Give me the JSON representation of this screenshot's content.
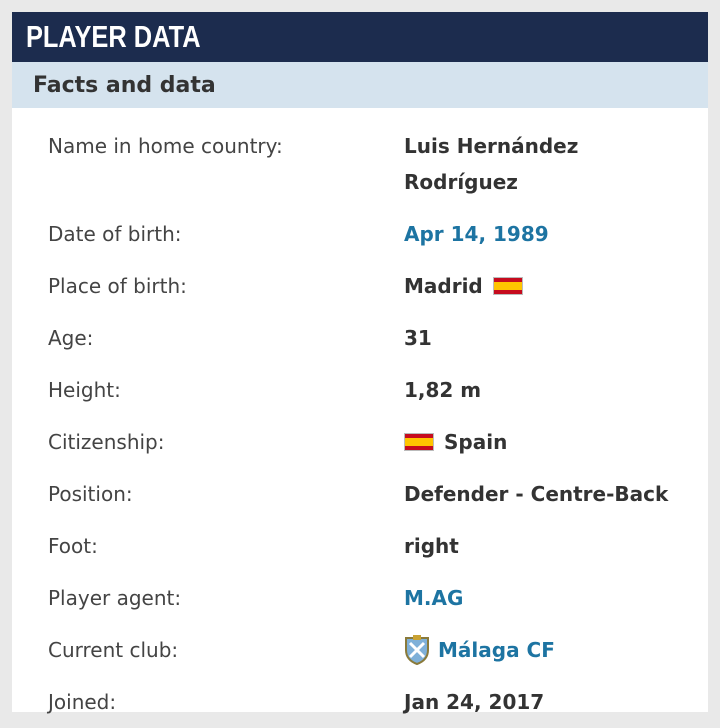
{
  "header": {
    "title": "PLAYER DATA"
  },
  "section": {
    "title": "Facts and data"
  },
  "rows": [
    {
      "label": "Name in home country:",
      "value": "Luis Hernández Rodríguez"
    },
    {
      "label": "Date of birth:",
      "value": "Apr 14, 1989"
    },
    {
      "label": "Place of birth:",
      "value": "Madrid"
    },
    {
      "label": "Age:",
      "value": "31"
    },
    {
      "label": "Height:",
      "value": "1,82 m"
    },
    {
      "label": "Citizenship:",
      "value": "Spain"
    },
    {
      "label": "Position:",
      "value": "Defender - Centre-Back"
    },
    {
      "label": "Foot:",
      "value": "right"
    },
    {
      "label": "Player agent:",
      "value": "M.AG"
    },
    {
      "label": "Current club:",
      "value": "Málaga CF"
    },
    {
      "label": "Joined:",
      "value": "Jan 24, 2017"
    }
  ]
}
